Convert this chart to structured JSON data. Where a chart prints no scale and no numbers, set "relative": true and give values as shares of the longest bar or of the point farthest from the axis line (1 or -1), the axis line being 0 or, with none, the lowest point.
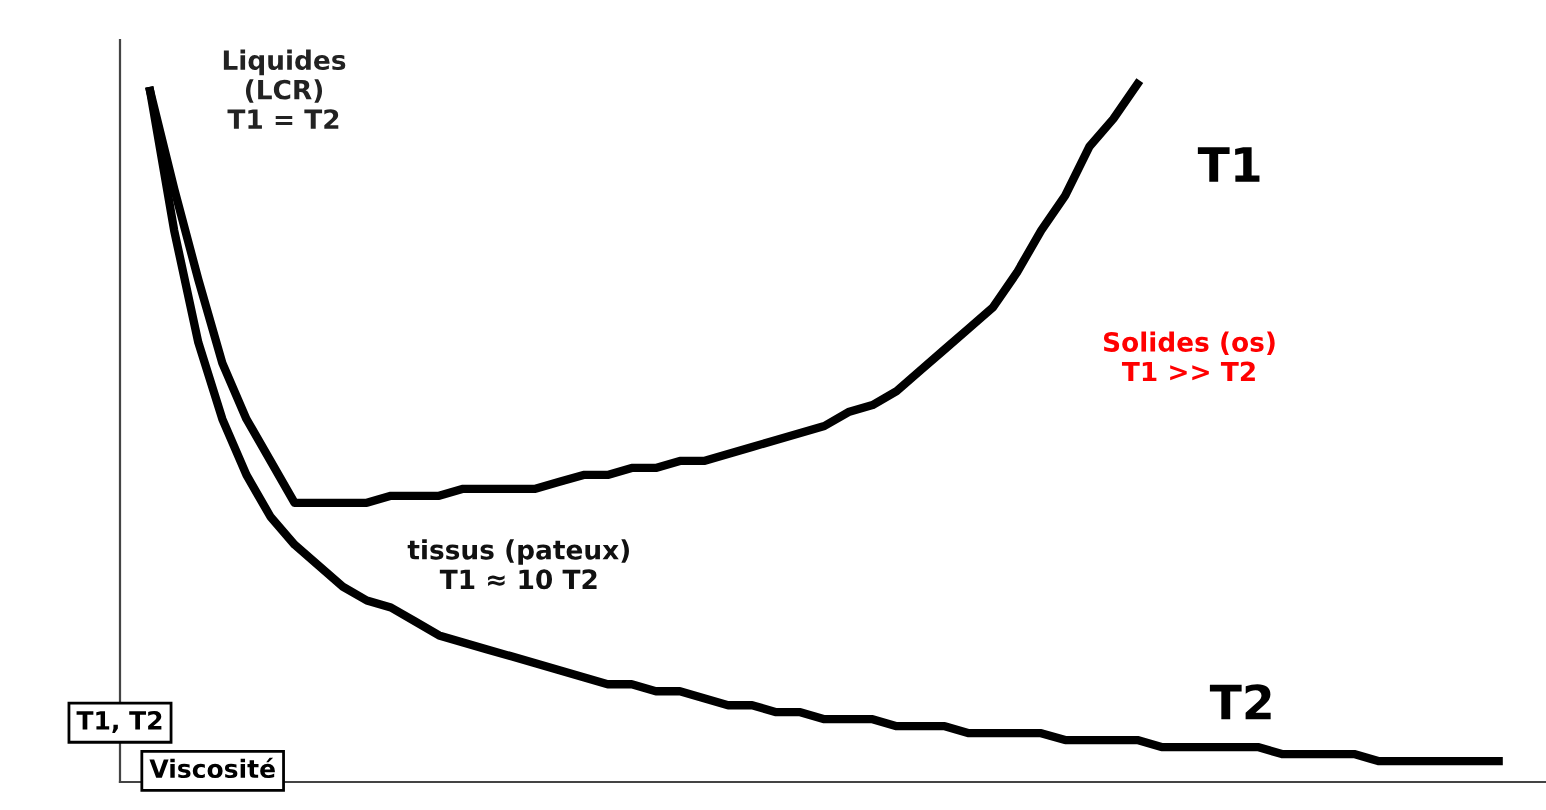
{
  "chart_data": {
    "type": "line",
    "relative": true,
    "xlabel": "Viscosité",
    "ylabel": "T1, T2",
    "categories": [
      null,
      null,
      null,
      null,
      null,
      null,
      null,
      null,
      null,
      null,
      null,
      null,
      null,
      null,
      null,
      null,
      null,
      null,
      null,
      null,
      null,
      null,
      null,
      null,
      null,
      null,
      null,
      null,
      null,
      null,
      null,
      null,
      null,
      null,
      null,
      null,
      null,
      null,
      null,
      null,
      null,
      null,
      null,
      null,
      null,
      null,
      null,
      null,
      null,
      null,
      null,
      null,
      null,
      null,
      null,
      null,
      null,
      null
    ],
    "series": [
      {
        "name": "T1",
        "color": "#000000",
        "values": [
          0.99,
          0.85,
          0.72,
          0.6,
          0.52,
          0.46,
          0.4,
          0.4,
          0.4,
          0.4,
          0.41,
          0.41,
          0.41,
          0.42,
          0.42,
          0.42,
          0.42,
          0.43,
          0.44,
          0.44,
          0.45,
          0.45,
          0.46,
          0.46,
          0.47,
          0.48,
          0.49,
          0.5,
          0.51,
          0.53,
          0.54,
          0.56,
          0.59,
          0.62,
          0.65,
          0.68,
          0.73,
          0.79,
          0.84,
          0.91,
          0.95,
          1,
          null,
          null,
          null,
          null,
          null,
          null,
          null,
          null,
          null,
          null,
          null,
          null,
          null,
          null,
          null,
          null
        ]
      },
      {
        "name": "T2",
        "color": "#000000",
        "values": [
          0.99,
          0.79,
          0.63,
          0.52,
          0.44,
          0.38,
          0.34,
          0.31,
          0.28,
          0.26,
          0.25,
          0.23,
          0.21,
          0.2,
          0.19,
          0.18,
          0.17,
          0.16,
          0.15,
          0.14,
          0.14,
          0.13,
          0.13,
          0.12,
          0.11,
          0.11,
          0.1,
          0.1,
          0.09,
          0.09,
          0.09,
          0.08,
          0.08,
          0.08,
          0.07,
          0.07,
          0.07,
          0.07,
          0.06,
          0.06,
          0.06,
          0.06,
          0.05,
          0.05,
          0.05,
          0.05,
          0.05,
          0.04,
          0.04,
          0.04,
          0.04,
          0.03,
          0.03,
          0.03,
          0.03,
          0.03,
          0.03,
          null
        ]
      }
    ],
    "annotations": [
      "Liquides\n(LCR)\nT1 = T2",
      "tissus (pateux)\nT1 ≈ 10 T2",
      "Solides (os)\nT1 >> T2"
    ],
    "legend": false,
    "marker": "none",
    "line_style": "solid"
  }
}
